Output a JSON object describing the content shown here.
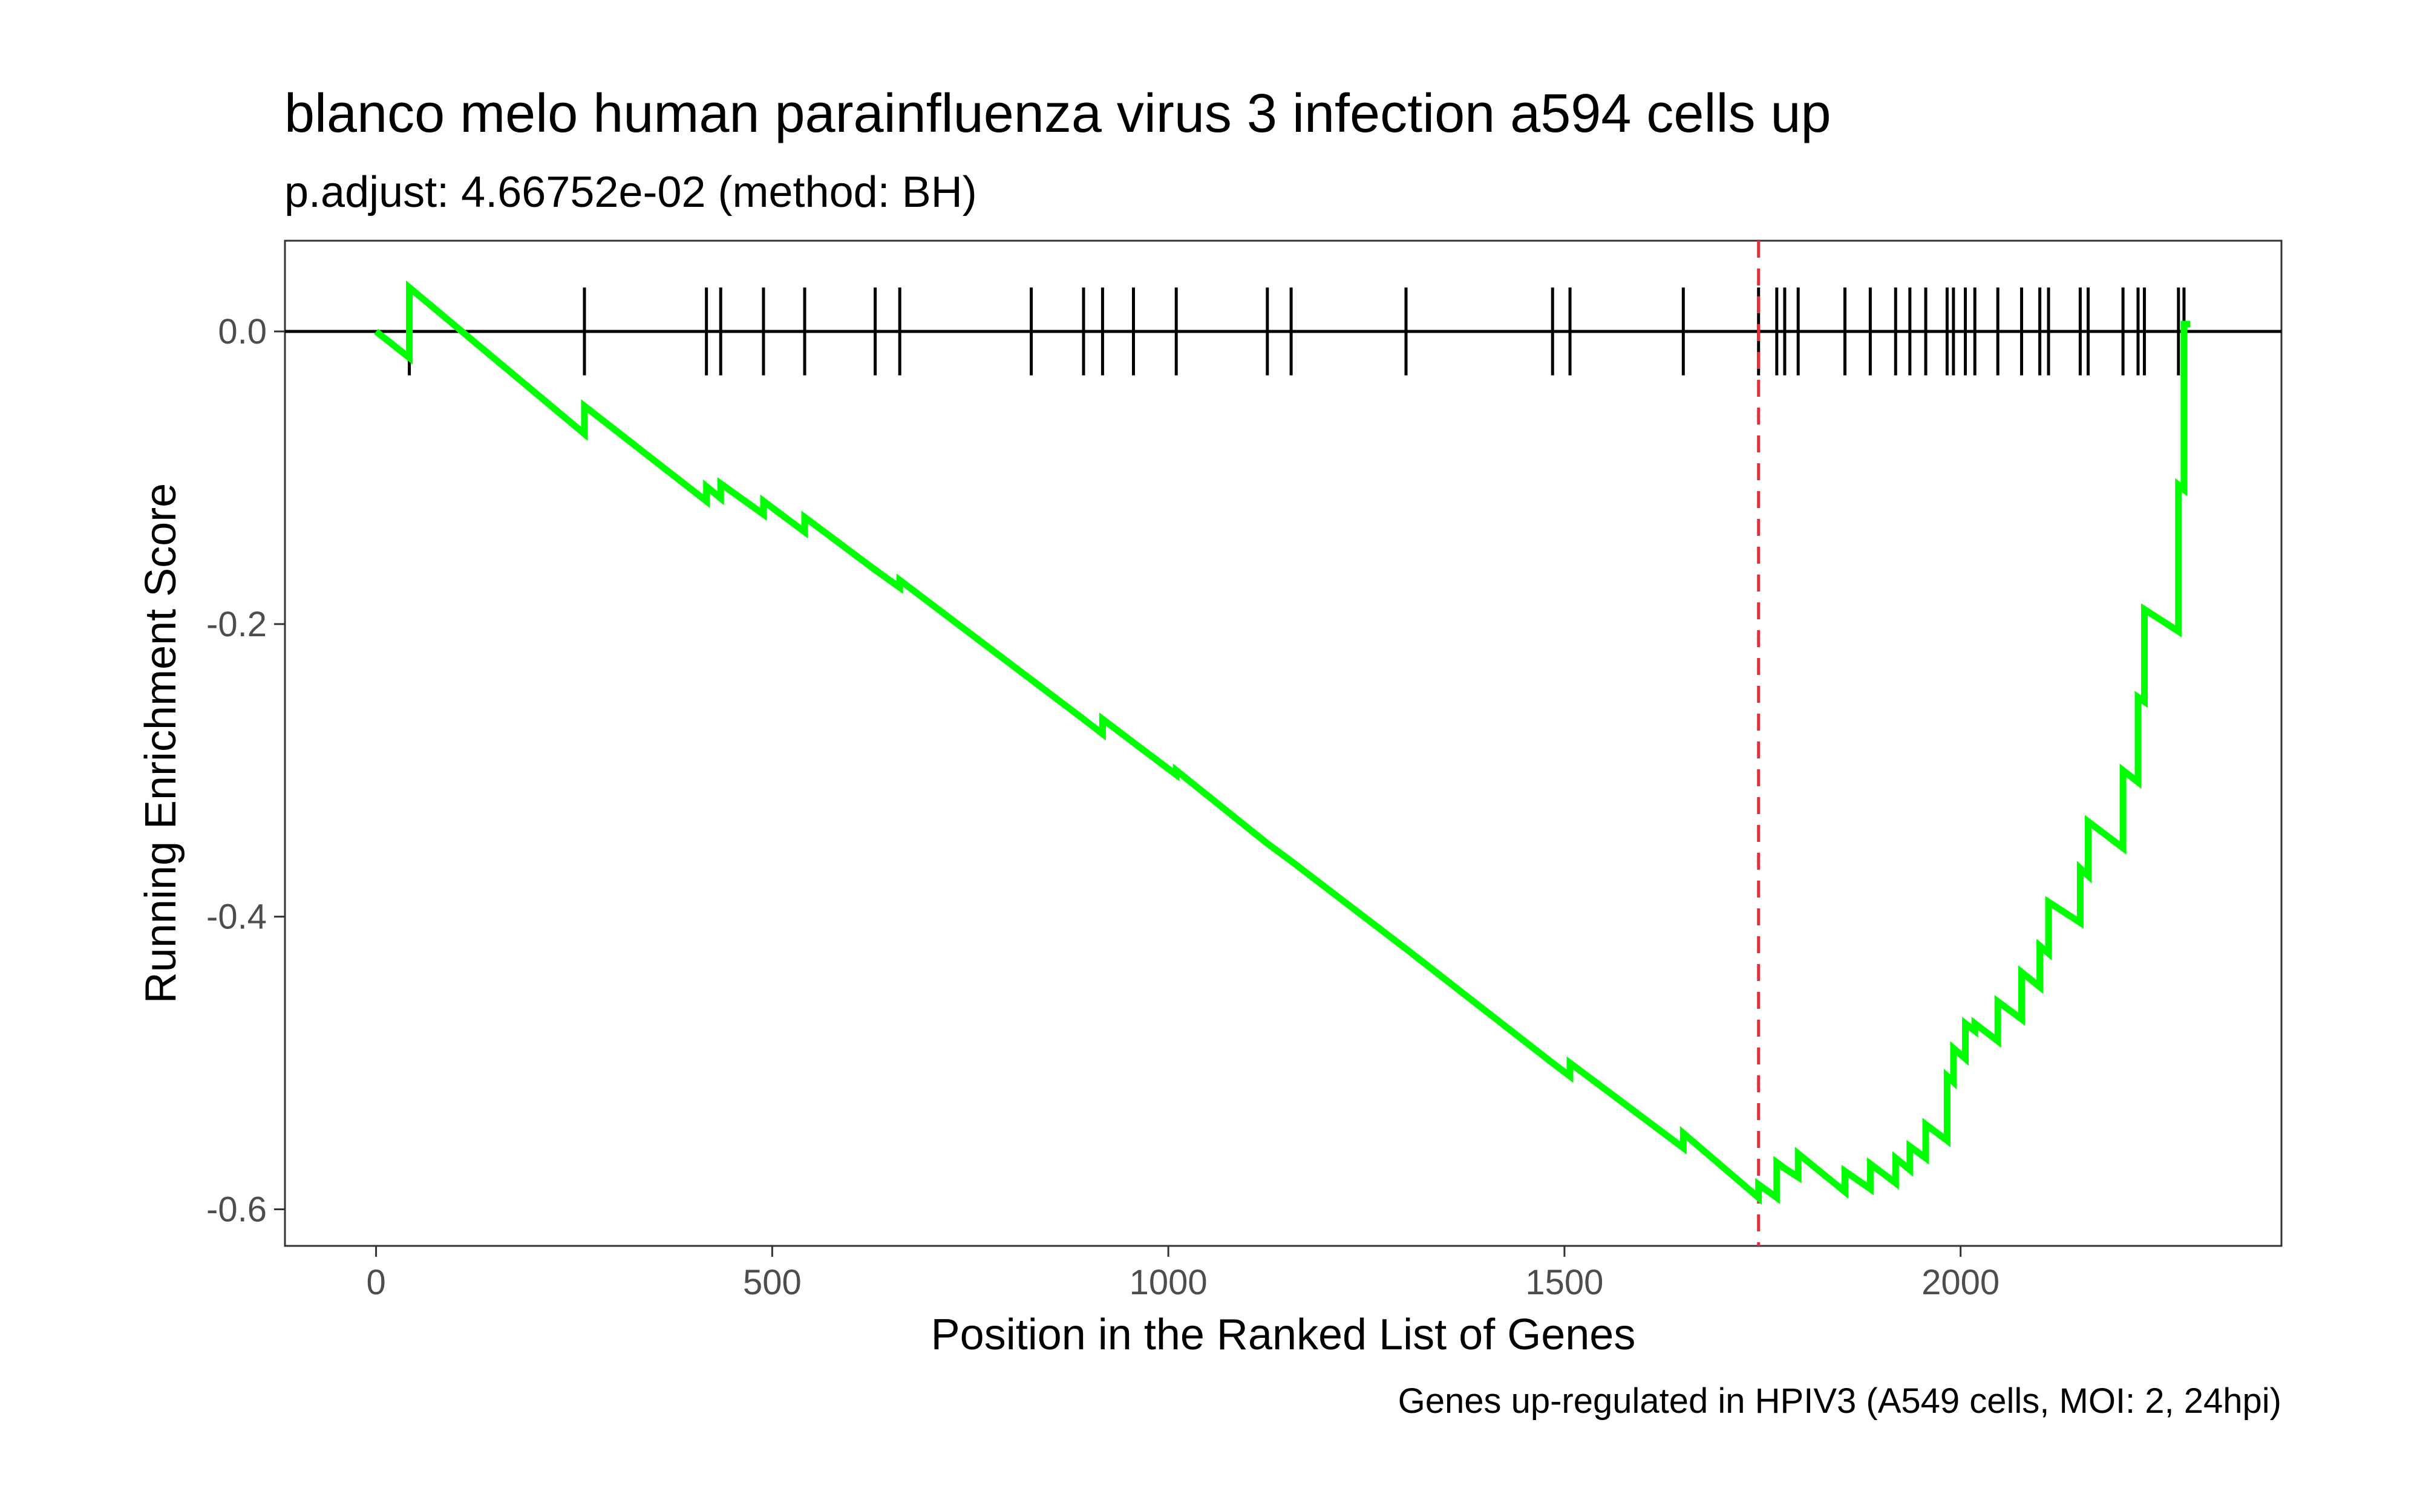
{
  "chart_data": {
    "type": "line",
    "title": "blanco melo human parainfluenza virus 3 infection a594 cells up",
    "subtitle": "p.adjust: 4.66752e-02 (method: BH)",
    "xlabel": "Position in the Ranked List of Genes",
    "ylabel": "Running Enrichment Score",
    "caption": "Genes up-regulated in HPIV3 (A549 cells, MOI: 2, 24hpi)",
    "xlim": [
      -115,
      2405
    ],
    "ylim": [
      -0.625,
      0.062
    ],
    "x_ticks": [
      0,
      500,
      1000,
      1500,
      2000
    ],
    "x_tick_labels": [
      "0",
      "500",
      "1000",
      "1500",
      "2000"
    ],
    "y_ticks": [
      0.0,
      -0.2,
      -0.4,
      -0.6
    ],
    "y_tick_labels": [
      "0.0",
      "-0.2",
      "-0.4",
      "-0.6"
    ],
    "grid": false,
    "colors": {
      "line": "#00ff00",
      "max_line": "#e0323a",
      "hits": "#000000",
      "zero_line": "#000000"
    },
    "max_deviation_position": 1745,
    "hit_positions": [
      42,
      263,
      417,
      435,
      489,
      541,
      630,
      661,
      827,
      893,
      917,
      956,
      1010,
      1125,
      1155,
      1300,
      1485,
      1507,
      1650,
      1745,
      1768,
      1778,
      1795,
      1854,
      1886,
      1918,
      1936,
      1956,
      1983,
      1991,
      2006,
      2018,
      2047,
      2077,
      2100,
      2111,
      2151,
      2161,
      2205,
      2224,
      2232,
      2275,
      2282
    ],
    "series": [
      {
        "x": [
          0,
          42,
          42,
          263,
          263,
          417,
          417,
          435,
          435,
          489,
          489,
          541,
          541,
          630,
          630,
          661,
          661,
          827,
          827,
          893,
          893,
          917,
          917,
          956,
          956,
          1010,
          1010,
          1125,
          1125,
          1155,
          1155,
          1300,
          1300,
          1485,
          1485,
          1507,
          1507,
          1650,
          1650,
          1745,
          1745,
          1768,
          1768,
          1778,
          1778,
          1795,
          1795,
          1854,
          1854,
          1886,
          1886,
          1918,
          1918,
          1936,
          1936,
          1956,
          1956,
          1983,
          1983,
          1991,
          1991,
          2006,
          2006,
          2018,
          2018,
          2047,
          2047,
          2077,
          2077,
          2100,
          2100,
          2111,
          2111,
          2151,
          2151,
          2161,
          2161,
          2205,
          2205,
          2224,
          2224,
          2232,
          2232,
          2275,
          2275,
          2282,
          2282,
          2290
        ],
        "y": [
          0.0,
          -0.018,
          0.03,
          -0.07,
          -0.051,
          -0.116,
          -0.106,
          -0.114,
          -0.104,
          -0.125,
          -0.116,
          -0.137,
          -0.127,
          -0.163,
          -0.163,
          -0.175,
          -0.17,
          -0.238,
          -0.238,
          -0.265,
          -0.265,
          -0.275,
          -0.265,
          -0.281,
          -0.281,
          -0.303,
          -0.3,
          -0.35,
          -0.35,
          -0.362,
          -0.362,
          -0.422,
          -0.422,
          -0.5,
          -0.5,
          -0.509,
          -0.5,
          -0.558,
          -0.548,
          -0.592,
          -0.583,
          -0.592,
          -0.568,
          -0.572,
          -0.572,
          -0.578,
          -0.562,
          -0.588,
          -0.574,
          -0.586,
          -0.569,
          -0.582,
          -0.565,
          -0.573,
          -0.557,
          -0.565,
          -0.542,
          -0.553,
          -0.509,
          -0.513,
          -0.49,
          -0.497,
          -0.473,
          -0.478,
          -0.473,
          -0.485,
          -0.458,
          -0.47,
          -0.438,
          -0.448,
          -0.42,
          -0.425,
          -0.39,
          -0.404,
          -0.367,
          -0.372,
          -0.335,
          -0.353,
          -0.3,
          -0.308,
          -0.25,
          -0.253,
          -0.19,
          -0.205,
          -0.105,
          -0.108,
          0.005,
          0.005
        ]
      }
    ]
  }
}
